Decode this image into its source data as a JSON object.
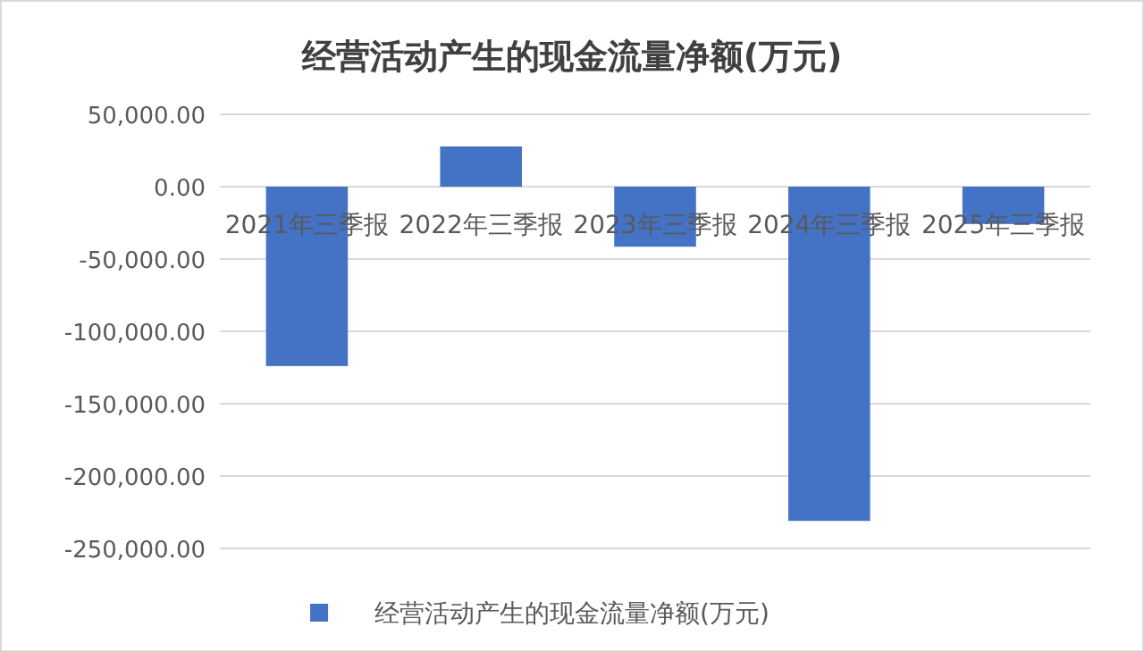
{
  "chart_data": {
    "type": "bar",
    "title": "经营活动产生的现金流量净额(万元)",
    "categories": [
      "2021年三季报",
      "2022年三季报",
      "2023年三季报",
      "2024年三季报",
      "2025年三季报"
    ],
    "series": [
      {
        "name": "经营活动产生的现金流量净额(万元)",
        "color": "#4472c4",
        "values": [
          -124000,
          27800,
          -41500,
          -231000,
          -25800
        ]
      }
    ],
    "ylim": [
      -250000,
      50000
    ],
    "yticks": [
      {
        "value": -250000,
        "label": "-250,000.00"
      },
      {
        "value": -200000,
        "label": "-200,000.00"
      },
      {
        "value": -150000,
        "label": "-150,000.00"
      },
      {
        "value": -100000,
        "label": "-100,000.00"
      },
      {
        "value": -50000,
        "label": "-50,000.00"
      },
      {
        "value": 0,
        "label": "0.00"
      },
      {
        "value": 50000,
        "label": "50,000.00"
      }
    ],
    "grid": "y",
    "legend": "bottom"
  }
}
